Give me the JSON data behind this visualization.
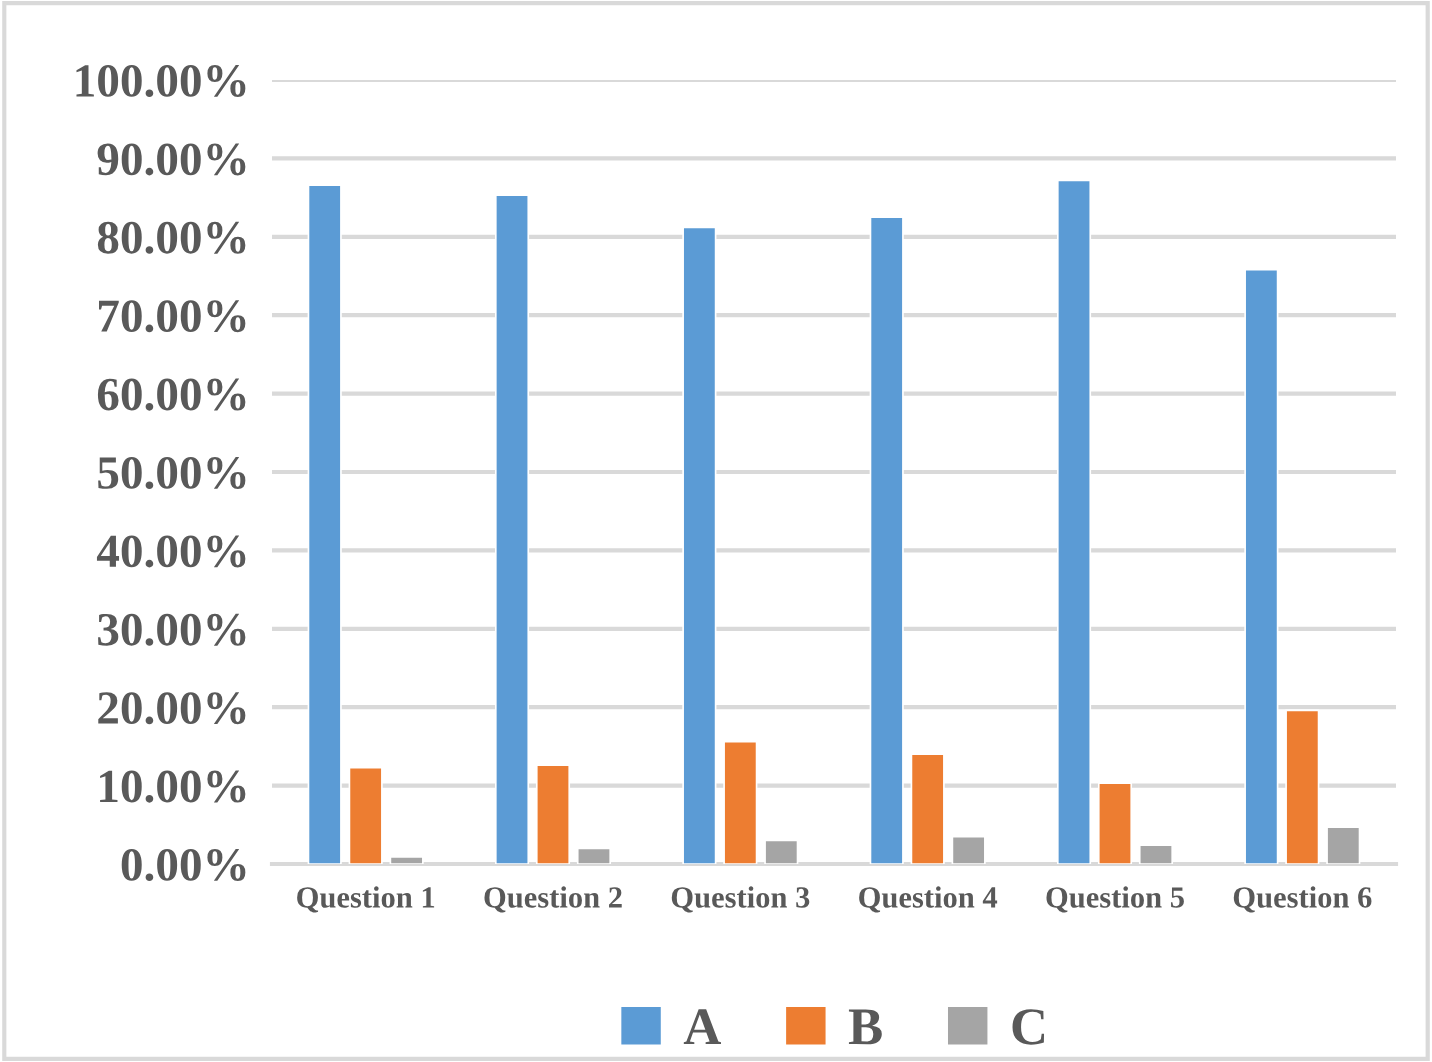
{
  "chart_data": {
    "type": "bar",
    "categories": [
      "Question 1",
      "Question 2",
      "Question 3",
      "Question 4",
      "Question 5",
      "Question 6"
    ],
    "series": [
      {
        "name": "A",
        "color": "#5b9bd5",
        "values": [
          86.6,
          85.3,
          81.2,
          82.5,
          87.2,
          75.8
        ]
      },
      {
        "name": "B",
        "color": "#ed7d31",
        "values": [
          12.3,
          12.6,
          15.6,
          14.0,
          10.3,
          19.6
        ]
      },
      {
        "name": "C",
        "color": "#a5a5a5",
        "values": [
          0.9,
          2.0,
          3.0,
          3.5,
          2.4,
          4.7
        ]
      }
    ],
    "ylim": [
      0,
      100
    ],
    "yticks": [
      {
        "value": 0,
        "label": "0.00%"
      },
      {
        "value": 10,
        "label": "10.00%"
      },
      {
        "value": 20,
        "label": "20.00%"
      },
      {
        "value": 30,
        "label": "30.00%"
      },
      {
        "value": 40,
        "label": "40.00%"
      },
      {
        "value": 50,
        "label": "50.00%"
      },
      {
        "value": 60,
        "label": "60.00%"
      },
      {
        "value": 70,
        "label": "70.00%"
      },
      {
        "value": 80,
        "label": "80.00%"
      },
      {
        "value": 90,
        "label": "90.00%"
      },
      {
        "value": 100,
        "label": "100.00%"
      }
    ],
    "grid": "y",
    "legend": "bottom"
  }
}
